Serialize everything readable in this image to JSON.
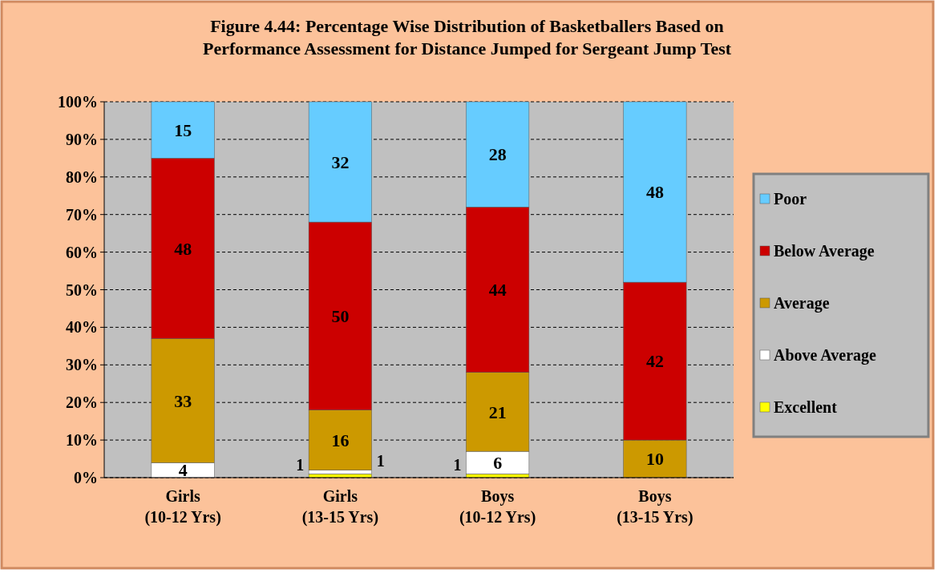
{
  "chart_data": {
    "type": "bar",
    "stacked": true,
    "title": "Figure 4.44: Percentage Wise Distribution of Basketballers Based on Performance Assessment for Distance Jumped for Sergeant Jump Test",
    "categories": [
      "Girls\n(10-12 Yrs)",
      "Girls\n(13-15 Yrs)",
      "Boys\n(10-12 Yrs)",
      "Boys\n(13-15 Yrs)"
    ],
    "series": [
      {
        "name": "Excellent",
        "color": "#ffff00",
        "values": [
          0,
          1,
          1,
          0
        ],
        "value_labels": [
          null,
          "1",
          "1",
          null
        ]
      },
      {
        "name": "Above Average",
        "color": "#ffffff",
        "values": [
          4,
          1,
          6,
          0
        ],
        "value_labels": [
          "4",
          "1",
          "6",
          null
        ]
      },
      {
        "name": "Average",
        "color": "#cc9900",
        "values": [
          33,
          16,
          21,
          10
        ],
        "value_labels": [
          "33",
          "16",
          "21",
          "10"
        ]
      },
      {
        "name": "Below Average",
        "color": "#cc0000",
        "values": [
          48,
          50,
          44,
          42
        ],
        "value_labels": [
          "48",
          "50",
          "44",
          "42"
        ]
      },
      {
        "name": "Poor",
        "color": "#66ccff",
        "values": [
          15,
          32,
          28,
          48
        ],
        "value_labels": [
          "15",
          "32",
          "28",
          "48"
        ]
      }
    ],
    "ylim": [
      0,
      100
    ],
    "yticks": [
      {
        "value": 0,
        "label": "0%"
      },
      {
        "value": 10,
        "label": "10%"
      },
      {
        "value": 20,
        "label": "20%"
      },
      {
        "value": 30,
        "label": "30%"
      },
      {
        "value": 40,
        "label": "40%"
      },
      {
        "value": 50,
        "label": "50%"
      },
      {
        "value": 60,
        "label": "60%"
      },
      {
        "value": 70,
        "label": "70%"
      },
      {
        "value": 80,
        "label": "80%"
      },
      {
        "value": 90,
        "label": "90%"
      },
      {
        "value": 100,
        "label": "100%"
      }
    ],
    "grid": "y",
    "legend": "right"
  }
}
